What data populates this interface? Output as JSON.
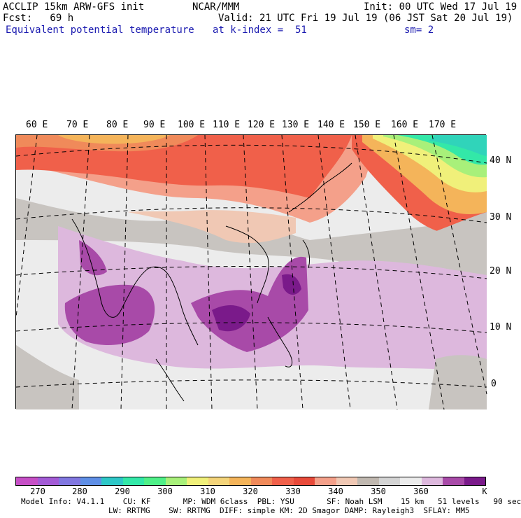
{
  "header": {
    "line1_left": "ACCLIP 15km ARW-GFS init",
    "line1_center": "NCAR/MMM",
    "line1_right": "Init: 00 UTC Wed 17 Jul 19",
    "line2_left": "Fcst:   69 h",
    "line2_right": "Valid: 21 UTC Fri 19 Jul 19 (06 JST Sat 20 Jul 19)",
    "line3_left": "Equivalent potential temperature",
    "line3_center": "at k-index =  51",
    "line3_right": "sm= 2"
  },
  "lon_labels": [
    "60 E",
    "70 E",
    "80 E",
    "90 E",
    "100 E",
    "110 E",
    "120 E",
    "130 E",
    "140 E",
    "150 E",
    "160 E",
    "170 E"
  ],
  "lat_labels": [
    "40 N",
    "30 N",
    "20 N",
    "10 N",
    "0"
  ],
  "colorbar": {
    "colors": [
      "#c64fc6",
      "#a35bd6",
      "#8177e0",
      "#5f8fe6",
      "#2ec7c7",
      "#33e8a8",
      "#4ff088",
      "#a8f07a",
      "#f0f07a",
      "#f4d47a",
      "#f4b45a",
      "#f08a5a",
      "#f0604a",
      "#e84a3a",
      "#f4a08a",
      "#f0c8b4",
      "#c0b8b0",
      "#d4d4d4",
      "#ececec",
      "#ddb8dd",
      "#a84aa8",
      "#7a1a8a"
    ],
    "tick_labels": [
      "270",
      "280",
      "290",
      "300",
      "310",
      "320",
      "330",
      "340",
      "350",
      "360"
    ],
    "unit": "K"
  },
  "footer": {
    "line1": "Model Info: V4.1.1    CU: KF       MP: WDM 6class  PBL: YSU       SF: Noah LSM    15 km   51 levels   90 sec",
    "line2": "LW: RRTMG    SW: RRTMG  DIFF: simple KM: 2D Smagor DAMP: Rayleigh3  SFLAY: MM5"
  }
}
